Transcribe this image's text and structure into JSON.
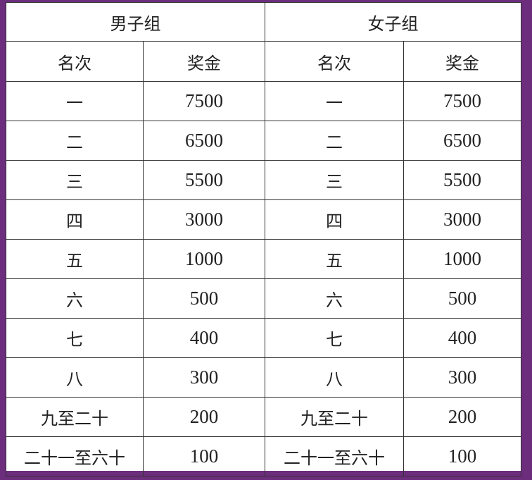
{
  "groups": [
    "男子组",
    "女子组"
  ],
  "columns": [
    "名次",
    "奖金",
    "名次",
    "奖金"
  ],
  "rows": [
    {
      "rank": "一",
      "prize": "7500"
    },
    {
      "rank": "二",
      "prize": "6500"
    },
    {
      "rank": "三",
      "prize": "5500"
    },
    {
      "rank": "四",
      "prize": "3000"
    },
    {
      "rank": "五",
      "prize": "1000"
    },
    {
      "rank": "六",
      "prize": "500"
    },
    {
      "rank": "七",
      "prize": "400"
    },
    {
      "rank": "八",
      "prize": "300"
    },
    {
      "rank": "九至二十",
      "prize": "200"
    },
    {
      "rank": "二十一至六十",
      "prize": "100"
    }
  ],
  "colors": {
    "background": "#6b2d7c",
    "table": "#ffffff",
    "border": "#333333"
  }
}
